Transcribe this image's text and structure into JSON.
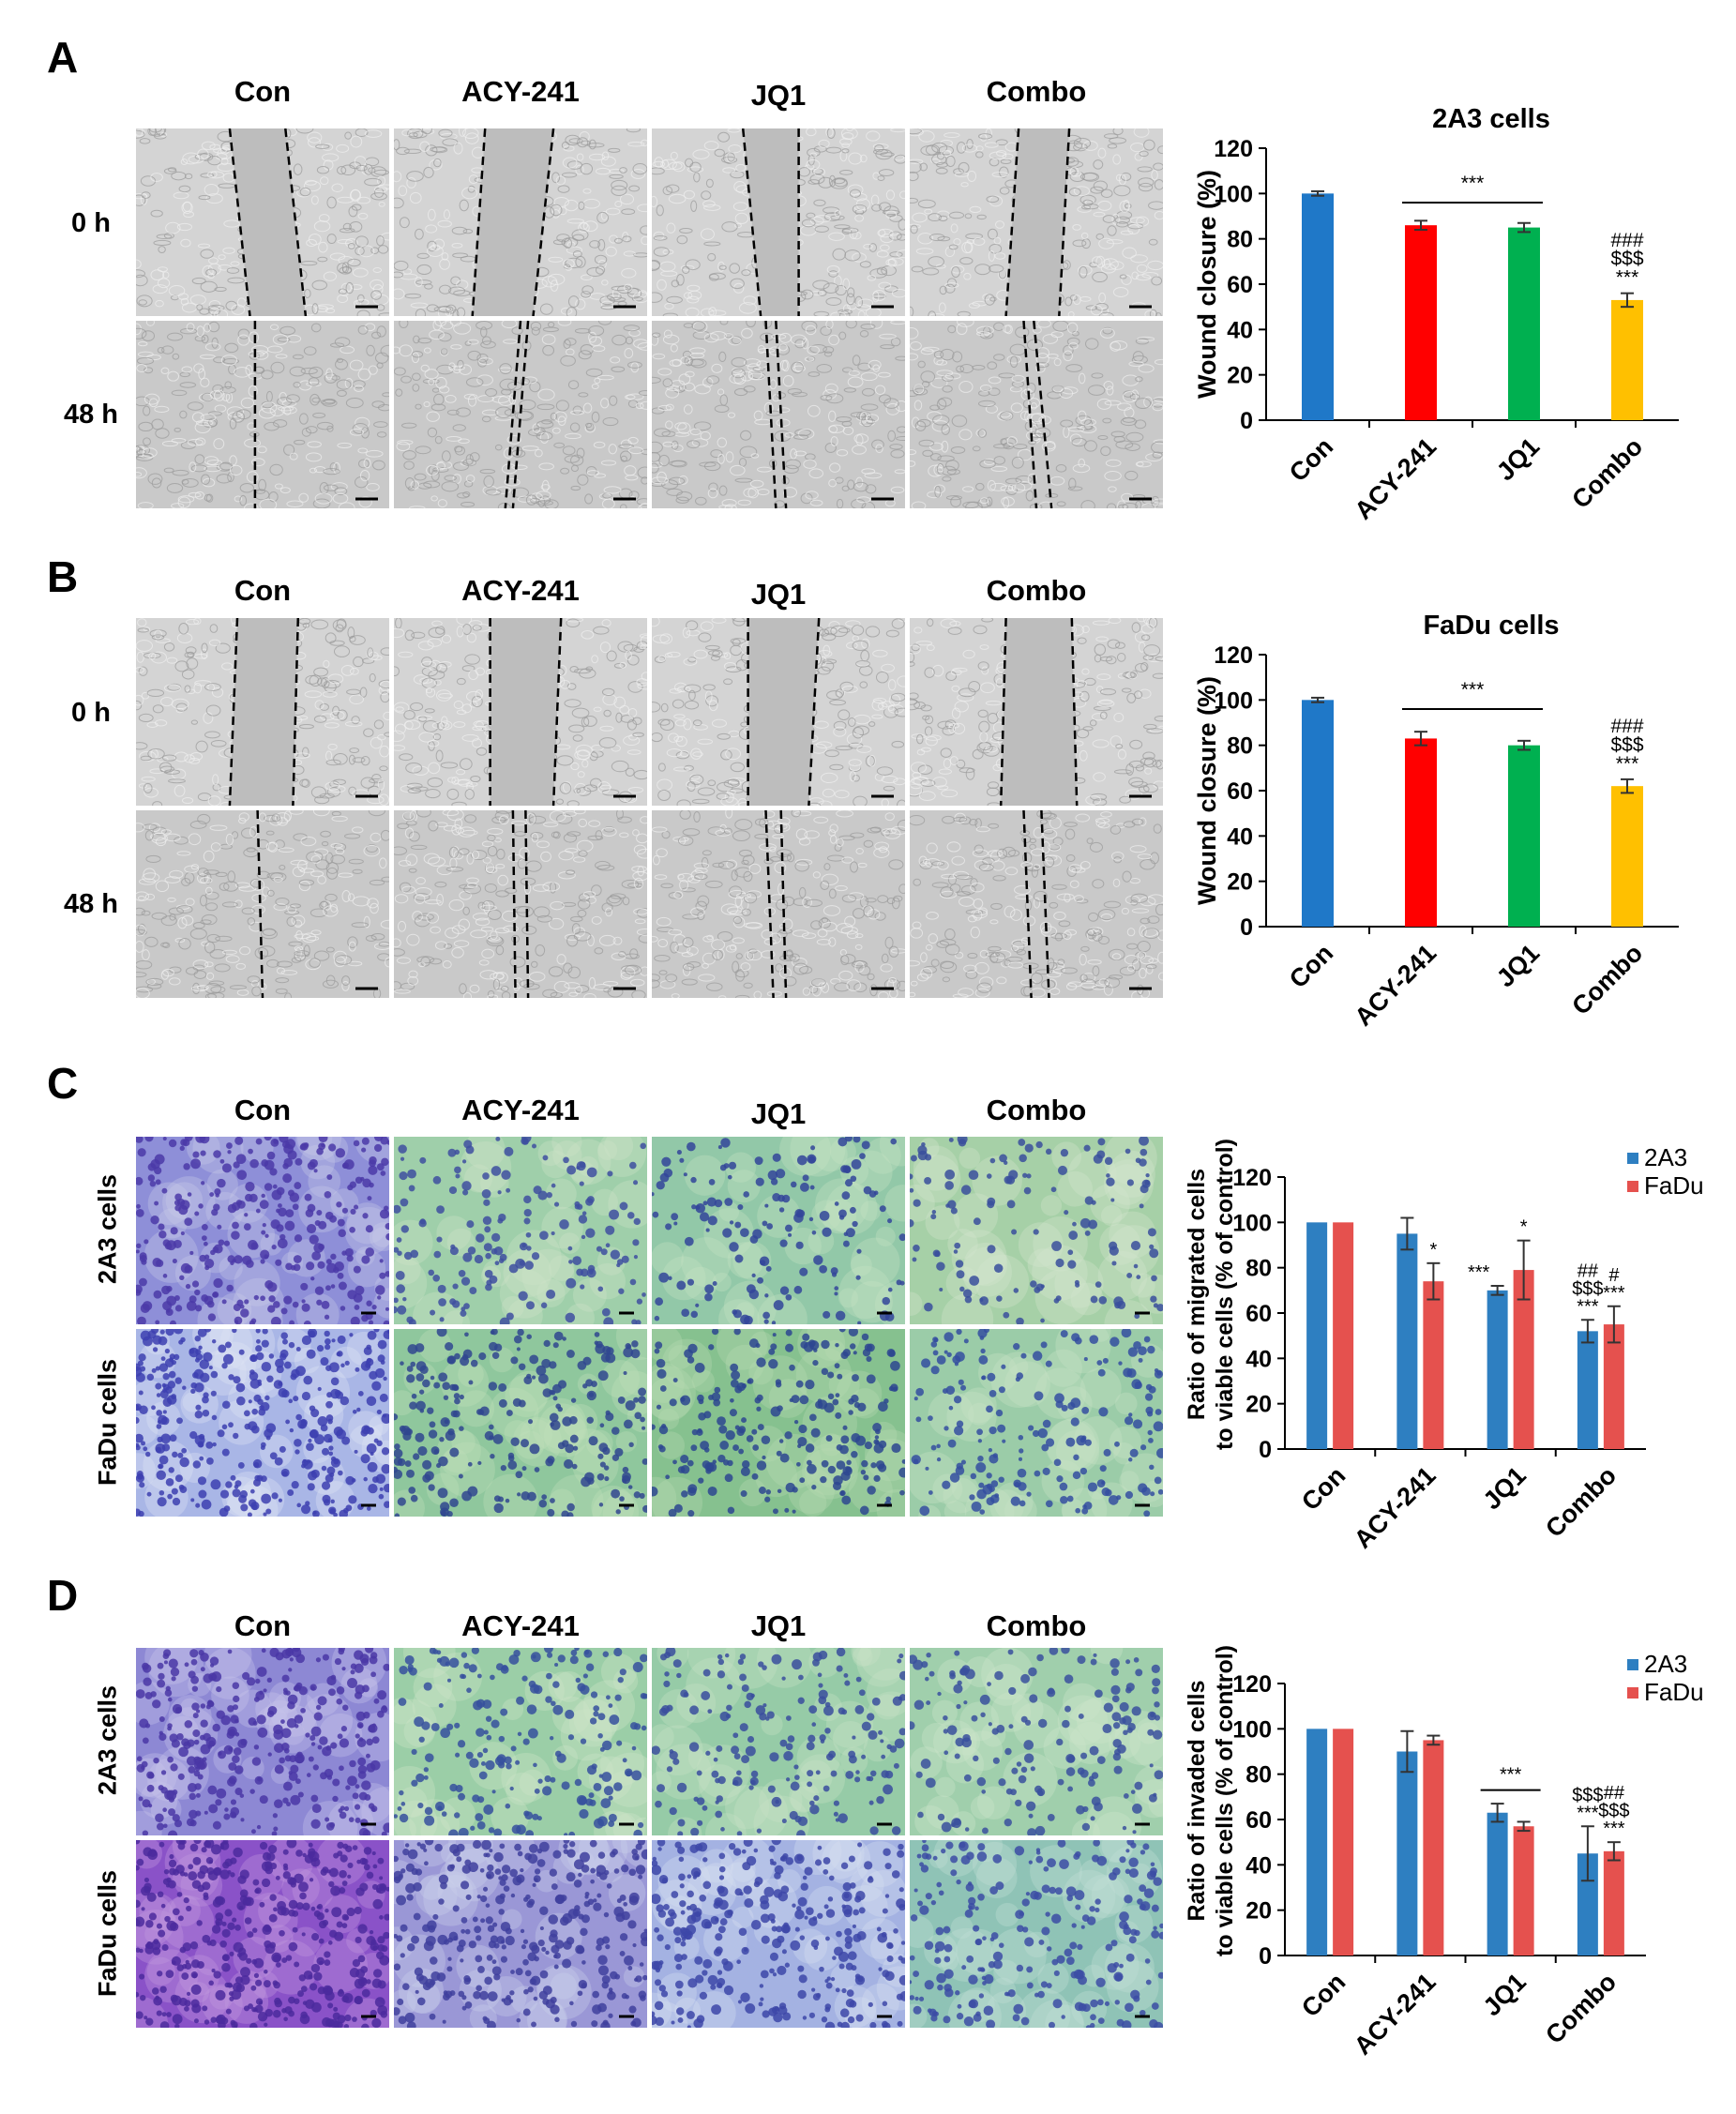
{
  "panels": [
    {
      "letter": "A",
      "columns": [
        "Con",
        "ACY-241",
        "JQ1",
        "Combo"
      ],
      "rows": [
        "0 h",
        "48 h"
      ]
    },
    {
      "letter": "B",
      "columns": [
        "Con",
        "ACY-241",
        "JQ1",
        "Combo"
      ],
      "rows": [
        "0 h",
        "48 h"
      ]
    },
    {
      "letter": "C",
      "columns": [
        "Con",
        "ACY-241",
        "JQ1",
        "Combo"
      ],
      "rows": [
        "2A3 cells",
        "FaDu cells"
      ]
    },
    {
      "letter": "D",
      "columns": [
        "Con",
        "ACY-241",
        "JQ1",
        "Combo"
      ],
      "rows": [
        "2A3 cells",
        "FaDu cells"
      ]
    }
  ],
  "colors": {
    "con": "#1f78c8",
    "acy": "#ff0000",
    "jq1": "#00b050",
    "combo": "#ffc000",
    "s2a3": "#2e7fc1",
    "sfadu": "#e5514e"
  },
  "chart_data": [
    {
      "type": "bar",
      "title": "2A3 cells",
      "ylabel": "Wound closure (%)",
      "categories": [
        "Con",
        "ACY-241",
        "JQ1",
        "Combo"
      ],
      "values": [
        100,
        86,
        85,
        53
      ],
      "errors": [
        1,
        2,
        2,
        3
      ],
      "ylim": [
        0,
        120
      ],
      "yticks": [
        0,
        20,
        40,
        60,
        80,
        100,
        120
      ],
      "bracket": {
        "from": "ACY-241",
        "to": "JQ1",
        "y": 96,
        "label": "***"
      },
      "annotations": [
        {
          "category": "Combo",
          "lines": [
            "###",
            "$$$",
            "***"
          ]
        }
      ]
    },
    {
      "type": "bar",
      "title": "FaDu cells",
      "ylabel": "Wound closure (%)",
      "categories": [
        "Con",
        "ACY-241",
        "JQ1",
        "Combo"
      ],
      "values": [
        100,
        83,
        80,
        62
      ],
      "errors": [
        1,
        3,
        2,
        3
      ],
      "ylim": [
        0,
        120
      ],
      "yticks": [
        0,
        20,
        40,
        60,
        80,
        100,
        120
      ],
      "bracket": {
        "from": "ACY-241",
        "to": "JQ1",
        "y": 96,
        "label": "***"
      },
      "annotations": [
        {
          "category": "Combo",
          "lines": [
            "###",
            "$$$",
            "***"
          ]
        }
      ]
    },
    {
      "type": "bar",
      "title": "",
      "ylabel": [
        "Ratio of migrated cells",
        "to viable cells (% of control)"
      ],
      "categories": [
        "Con",
        "ACY-241",
        "JQ1",
        "Combo"
      ],
      "series": [
        {
          "name": "2A3",
          "values": [
            100,
            95,
            70,
            52
          ],
          "errors": [
            0,
            7,
            2,
            5
          ]
        },
        {
          "name": "FaDu",
          "values": [
            100,
            74,
            79,
            55
          ],
          "errors": [
            0,
            8,
            13,
            8
          ]
        }
      ],
      "ylim": [
        0,
        120
      ],
      "yticks": [
        0,
        20,
        40,
        60,
        80,
        100,
        120
      ],
      "annotations": [
        {
          "category": "ACY-241",
          "series": "FaDu",
          "lines": [
            "*"
          ]
        },
        {
          "category": "JQ1",
          "series": "2A3",
          "lines": [
            "***"
          ]
        },
        {
          "category": "JQ1",
          "series": "FaDu",
          "lines": [
            "*"
          ]
        },
        {
          "category": "Combo",
          "series": "2A3",
          "lines": [
            "##",
            "$$$",
            "***"
          ]
        },
        {
          "category": "Combo",
          "series": "FaDu",
          "lines": [
            "#",
            "***"
          ]
        }
      ]
    },
    {
      "type": "bar",
      "title": "",
      "ylabel": [
        "Ratio of invaded cells",
        "to viable cells (% of control)"
      ],
      "categories": [
        "Con",
        "ACY-241",
        "JQ1",
        "Combo"
      ],
      "series": [
        {
          "name": "2A3",
          "values": [
            100,
            90,
            63,
            45
          ],
          "errors": [
            0,
            9,
            4,
            12
          ]
        },
        {
          "name": "FaDu",
          "values": [
            100,
            95,
            57,
            46
          ],
          "errors": [
            0,
            2,
            2,
            4
          ]
        }
      ],
      "ylim": [
        0,
        120
      ],
      "yticks": [
        0,
        20,
        40,
        60,
        80,
        100,
        120
      ],
      "bracket": {
        "from": "JQ1",
        "to": "JQ1",
        "y": 73,
        "label": "***"
      },
      "annotations": [
        {
          "category": "Combo",
          "series": "2A3",
          "lines": [
            "$$$",
            "***"
          ]
        },
        {
          "category": "Combo",
          "series": "FaDu",
          "lines": [
            "##",
            "$$$",
            "***"
          ]
        }
      ]
    }
  ]
}
